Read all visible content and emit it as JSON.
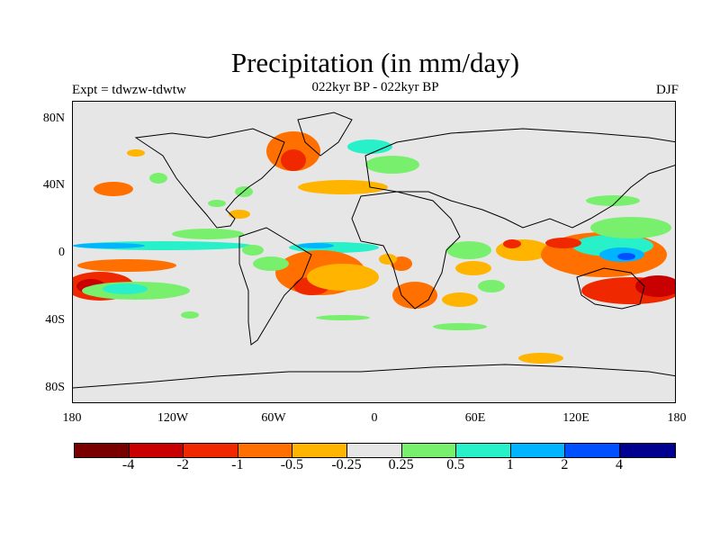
{
  "title": "Precipitation (in mm/day)",
  "subtitle_left": "Expt = tdwzw-tdwtw",
  "subtitle_center": "022kyr BP - 022kyr BP",
  "subtitle_right": "DJF",
  "lat_labels": [
    "80N",
    "40N",
    "0",
    "40S",
    "80S"
  ],
  "lon_labels": [
    "180",
    "120W",
    "60W",
    "0",
    "60E",
    "120E",
    "180"
  ],
  "colorbar": {
    "colors": [
      "#7a0000",
      "#c80000",
      "#f02800",
      "#ff7000",
      "#ffb400",
      "#e6e6e6",
      "#78f06e",
      "#28f0c8",
      "#00b4ff",
      "#0050ff",
      "#000090"
    ],
    "labels": [
      "-4",
      "-2",
      "-1",
      "-0.5",
      "-0.25",
      "0.25",
      "0.5",
      "1",
      "2",
      "4"
    ]
  },
  "map": {
    "projection": "cylindrical-equidistant",
    "lon_range": [
      -180,
      180
    ],
    "lat_range": [
      -90,
      90
    ],
    "background": "#e6e6e6"
  }
}
